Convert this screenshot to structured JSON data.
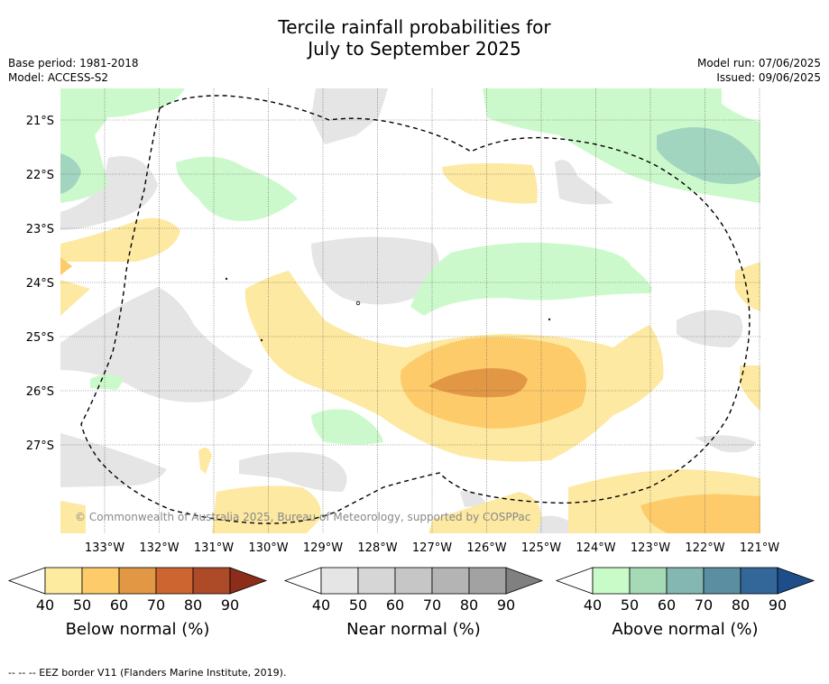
{
  "title_line1": "Tercile rainfall probabilities for",
  "title_line2": "July to September 2025",
  "base_period": "Base period: 1981-2018",
  "model": "Model: ACCESS-S2",
  "model_run": "Model run: 07/06/2025",
  "issued": "Issued: 09/06/2025",
  "lat_labels": [
    "21°S",
    "22°S",
    "23°S",
    "24°S",
    "25°S",
    "26°S",
    "27°S"
  ],
  "lon_labels": [
    "133°W",
    "132°W",
    "131°W",
    "130°W",
    "129°W",
    "128°W",
    "127°W",
    "126°W",
    "125°W",
    "124°W",
    "123°W",
    "122°W",
    "121°W"
  ],
  "copyright": "© Commonwealth of Australia 2025, Bureau of Meteorology, supported by COSPPac",
  "colorbars": [
    {
      "label": "Below normal (%)",
      "ticks": [
        "40",
        "50",
        "60",
        "70",
        "80",
        "90"
      ],
      "colors": [
        "#fdeca0",
        "#fdcb6a",
        "#e29744",
        "#cd6531",
        "#ad4a27",
        "#8b2d1a"
      ]
    },
    {
      "label": "Near normal (%)",
      "ticks": [
        "40",
        "50",
        "60",
        "70",
        "80",
        "90"
      ],
      "colors": [
        "#e5e5e5",
        "#d6d6d6",
        "#c6c6c6",
        "#b4b4b4",
        "#a2a2a2",
        "#808080"
      ]
    },
    {
      "label": "Above normal (%)",
      "ticks": [
        "40",
        "50",
        "60",
        "70",
        "80",
        "90"
      ],
      "colors": [
        "#c9fbc9",
        "#a6d9b6",
        "#84b7b1",
        "#5a8ea0",
        "#336699",
        "#1d4e89"
      ]
    }
  ],
  "footnote": "--  --  -- EEZ border V11 (Flanders Marine Institute, 2019).",
  "map_colors": {
    "above40": "#ccf9cc",
    "above50": "#a1d5bf",
    "below40": "#fde9a1",
    "below50": "#fdcb6a",
    "below60": "#e29744",
    "near40": "#e5e5e5"
  }
}
